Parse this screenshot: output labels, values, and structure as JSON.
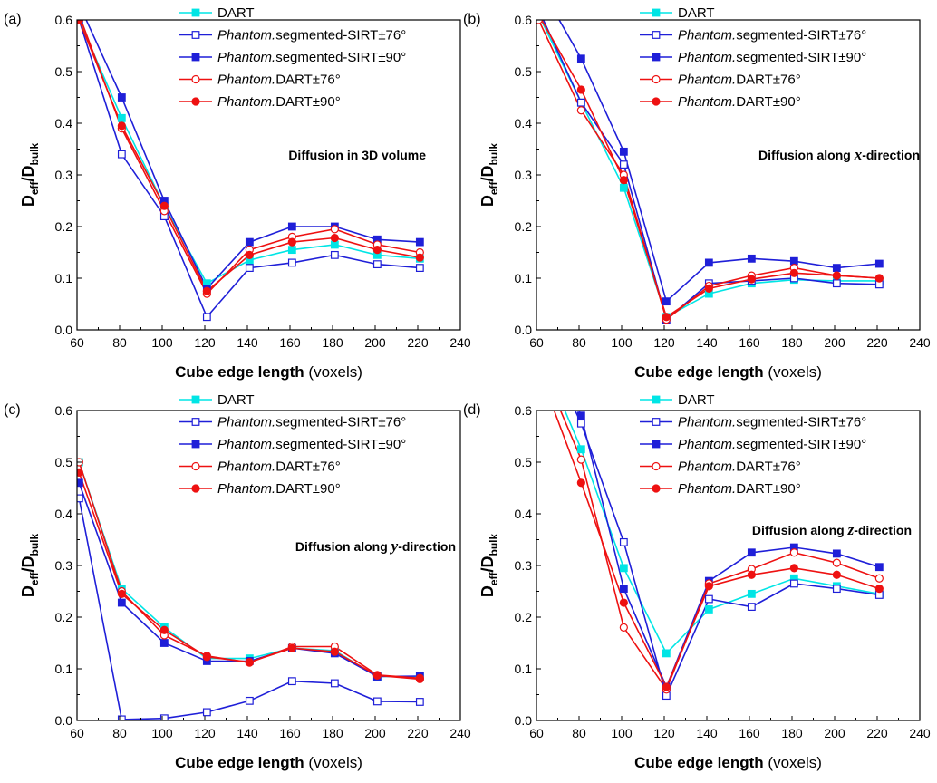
{
  "chart_data": [
    {
      "type": "line",
      "panel_label": "(a)",
      "annotation": {
        "pre": "Diffusion in 3D volume",
        "italic": "",
        "post": ""
      },
      "xlabel": {
        "bold": "Cube edge length",
        "normal": " (voxels)"
      },
      "ylabel": {
        "main": "D",
        "sub1": "eff",
        "slash": "/D",
        "sub2": "bulk"
      },
      "xlim": [
        60,
        240
      ],
      "ylim": [
        0.0,
        0.6
      ],
      "xticks": [
        60,
        80,
        100,
        120,
        140,
        160,
        180,
        200,
        220,
        240
      ],
      "yticks": [
        "0.0",
        "0.1",
        "0.2",
        "0.3",
        "0.4",
        "0.5",
        "0.6"
      ],
      "x": [
        61,
        81,
        101,
        121,
        141,
        161,
        181,
        201,
        221
      ],
      "legend": "top-right",
      "series": [
        {
          "name": "DART",
          "color": "#00e5e5",
          "marker": "square-filled",
          "values": [
            0.6,
            0.41,
            0.24,
            0.09,
            0.135,
            0.155,
            0.165,
            0.145,
            0.138
          ]
        },
        {
          "name": "segmented-SIRT±76°",
          "prefix": "Phantom.",
          "color": "#1f1fd8",
          "marker": "square-open",
          "values": [
            0.6,
            0.34,
            0.22,
            0.025,
            0.12,
            0.13,
            0.145,
            0.127,
            0.12
          ]
        },
        {
          "name": "segmented-SIRT±90°",
          "prefix": "Phantom.",
          "color": "#1f1fd8",
          "marker": "square-filled",
          "values": [
            0.63,
            0.45,
            0.25,
            0.08,
            0.17,
            0.2,
            0.2,
            0.175,
            0.17
          ]
        },
        {
          "name": "DART±76°",
          "prefix": "Phantom.",
          "color": "#ee1111",
          "marker": "circle-open",
          "values": [
            0.61,
            0.39,
            0.23,
            0.07,
            0.155,
            0.18,
            0.195,
            0.165,
            0.15
          ]
        },
        {
          "name": "DART±90°",
          "prefix": "Phantom.",
          "color": "#ee1111",
          "marker": "circle-filled",
          "values": [
            0.6,
            0.395,
            0.24,
            0.075,
            0.145,
            0.17,
            0.178,
            0.155,
            0.14
          ]
        }
      ]
    },
    {
      "type": "line",
      "panel_label": "(b)",
      "annotation": {
        "pre": "Diffusion along ",
        "italic": "x",
        "post": "-direction"
      },
      "xlabel": {
        "bold": "Cube edge length",
        "normal": " (voxels)"
      },
      "ylabel": {
        "main": "D",
        "sub1": "eff",
        "slash": "/D",
        "sub2": "bulk"
      },
      "xlim": [
        60,
        240
      ],
      "ylim": [
        0.0,
        0.6
      ],
      "xticks": [
        60,
        80,
        100,
        120,
        140,
        160,
        180,
        200,
        220,
        240
      ],
      "yticks": [
        "0.0",
        "0.1",
        "0.2",
        "0.3",
        "0.4",
        "0.5",
        "0.6"
      ],
      "x": [
        61,
        81,
        101,
        121,
        141,
        161,
        181,
        201,
        221
      ],
      "legend": "top-right",
      "series": [
        {
          "name": "DART",
          "color": "#00e5e5",
          "marker": "square-filled",
          "values": [
            0.61,
            0.44,
            0.275,
            0.025,
            0.07,
            0.09,
            0.097,
            0.095,
            0.095
          ]
        },
        {
          "name": "segmented-SIRT±76°",
          "prefix": "Phantom.",
          "color": "#1f1fd8",
          "marker": "square-open",
          "values": [
            0.62,
            0.44,
            0.32,
            0.02,
            0.09,
            0.095,
            0.1,
            0.09,
            0.088
          ]
        },
        {
          "name": "segmented-SIRT±90°",
          "prefix": "Phantom.",
          "color": "#1f1fd8",
          "marker": "square-filled",
          "values": [
            0.67,
            0.525,
            0.345,
            0.055,
            0.13,
            0.138,
            0.133,
            0.12,
            0.128
          ]
        },
        {
          "name": "DART±76°",
          "prefix": "Phantom.",
          "color": "#ee1111",
          "marker": "circle-open",
          "values": [
            0.6,
            0.425,
            0.3,
            0.02,
            0.085,
            0.105,
            0.12,
            0.105,
            0.1
          ]
        },
        {
          "name": "DART±90°",
          "prefix": "Phantom.",
          "color": "#ee1111",
          "marker": "circle-filled",
          "values": [
            0.61,
            0.465,
            0.29,
            0.025,
            0.08,
            0.098,
            0.11,
            0.105,
            0.1
          ]
        }
      ]
    },
    {
      "type": "line",
      "panel_label": "(c)",
      "annotation": {
        "pre": "Diffusion along ",
        "italic": "y",
        "post": "-direction"
      },
      "xlabel": {
        "bold": "Cube edge length",
        "normal": " (voxels)"
      },
      "ylabel": {
        "main": "D",
        "sub1": "eff",
        "slash": "/D",
        "sub2": "bulk"
      },
      "xlim": [
        60,
        240
      ],
      "ylim": [
        0.0,
        0.6
      ],
      "xticks": [
        60,
        80,
        100,
        120,
        140,
        160,
        180,
        200,
        220,
        240
      ],
      "yticks": [
        "0.0",
        "0.1",
        "0.2",
        "0.3",
        "0.4",
        "0.5",
        "0.6"
      ],
      "x": [
        61,
        81,
        101,
        121,
        141,
        161,
        181,
        201,
        221
      ],
      "legend": "top-right",
      "series": [
        {
          "name": "DART",
          "color": "#00e5e5",
          "marker": "square-filled",
          "values": [
            0.5,
            0.255,
            0.18,
            0.12,
            0.12,
            0.14,
            0.135,
            0.085,
            0.085
          ]
        },
        {
          "name": "segmented-SIRT±76°",
          "prefix": "Phantom.",
          "color": "#1f1fd8",
          "marker": "square-open",
          "values": [
            0.43,
            0.002,
            0.004,
            0.016,
            0.038,
            0.076,
            0.072,
            0.037,
            0.036
          ]
        },
        {
          "name": "segmented-SIRT±90°",
          "prefix": "Phantom.",
          "color": "#1f1fd8",
          "marker": "square-filled",
          "values": [
            0.46,
            0.228,
            0.15,
            0.115,
            0.115,
            0.14,
            0.13,
            0.085,
            0.086
          ]
        },
        {
          "name": "DART±76°",
          "prefix": "Phantom.",
          "color": "#ee1111",
          "marker": "circle-open",
          "values": [
            0.5,
            0.25,
            0.165,
            0.125,
            0.112,
            0.143,
            0.143,
            0.088,
            0.082
          ]
        },
        {
          "name": "DART±90°",
          "prefix": "Phantom.",
          "color": "#ee1111",
          "marker": "circle-filled",
          "values": [
            0.48,
            0.245,
            0.175,
            0.123,
            0.113,
            0.14,
            0.133,
            0.087,
            0.08
          ]
        }
      ]
    },
    {
      "type": "line",
      "panel_label": "(d)",
      "annotation": {
        "pre": "Diffusion along ",
        "italic": "z",
        "post": "-direction"
      },
      "xlabel": {
        "bold": "Cube edge length",
        "normal": " (voxels)"
      },
      "ylabel": {
        "main": "D",
        "sub1": "eff",
        "slash": "/D",
        "sub2": "bulk"
      },
      "xlim": [
        60,
        240
      ],
      "ylim": [
        0.0,
        0.6
      ],
      "xticks": [
        60,
        80,
        100,
        120,
        140,
        160,
        180,
        200,
        220,
        240
      ],
      "yticks": [
        "0.0",
        "0.1",
        "0.2",
        "0.3",
        "0.4",
        "0.5",
        "0.6"
      ],
      "x": [
        61,
        81,
        101,
        121,
        141,
        161,
        181,
        201,
        221
      ],
      "legend": "top-right",
      "series": [
        {
          "name": "DART",
          "color": "#00e5e5",
          "marker": "square-filled",
          "values": [
            0.72,
            0.525,
            0.295,
            0.13,
            0.215,
            0.245,
            0.275,
            0.26,
            0.245
          ]
        },
        {
          "name": "segmented-SIRT±76°",
          "prefix": "Phantom.",
          "color": "#1f1fd8",
          "marker": "square-open",
          "values": [
            0.75,
            0.575,
            0.345,
            0.048,
            0.235,
            0.22,
            0.265,
            0.255,
            0.243
          ]
        },
        {
          "name": "segmented-SIRT±90°",
          "prefix": "Phantom.",
          "color": "#1f1fd8",
          "marker": "square-filled",
          "values": [
            0.78,
            0.59,
            0.255,
            0.065,
            0.27,
            0.325,
            0.335,
            0.323,
            0.297
          ]
        },
        {
          "name": "DART±76°",
          "prefix": "Phantom.",
          "color": "#ee1111",
          "marker": "circle-open",
          "values": [
            0.7,
            0.505,
            0.18,
            0.06,
            0.265,
            0.293,
            0.325,
            0.305,
            0.275
          ]
        },
        {
          "name": "DART±90°",
          "prefix": "Phantom.",
          "color": "#ee1111",
          "marker": "circle-filled",
          "values": [
            0.68,
            0.46,
            0.228,
            0.065,
            0.26,
            0.282,
            0.295,
            0.282,
            0.255
          ]
        }
      ]
    }
  ]
}
